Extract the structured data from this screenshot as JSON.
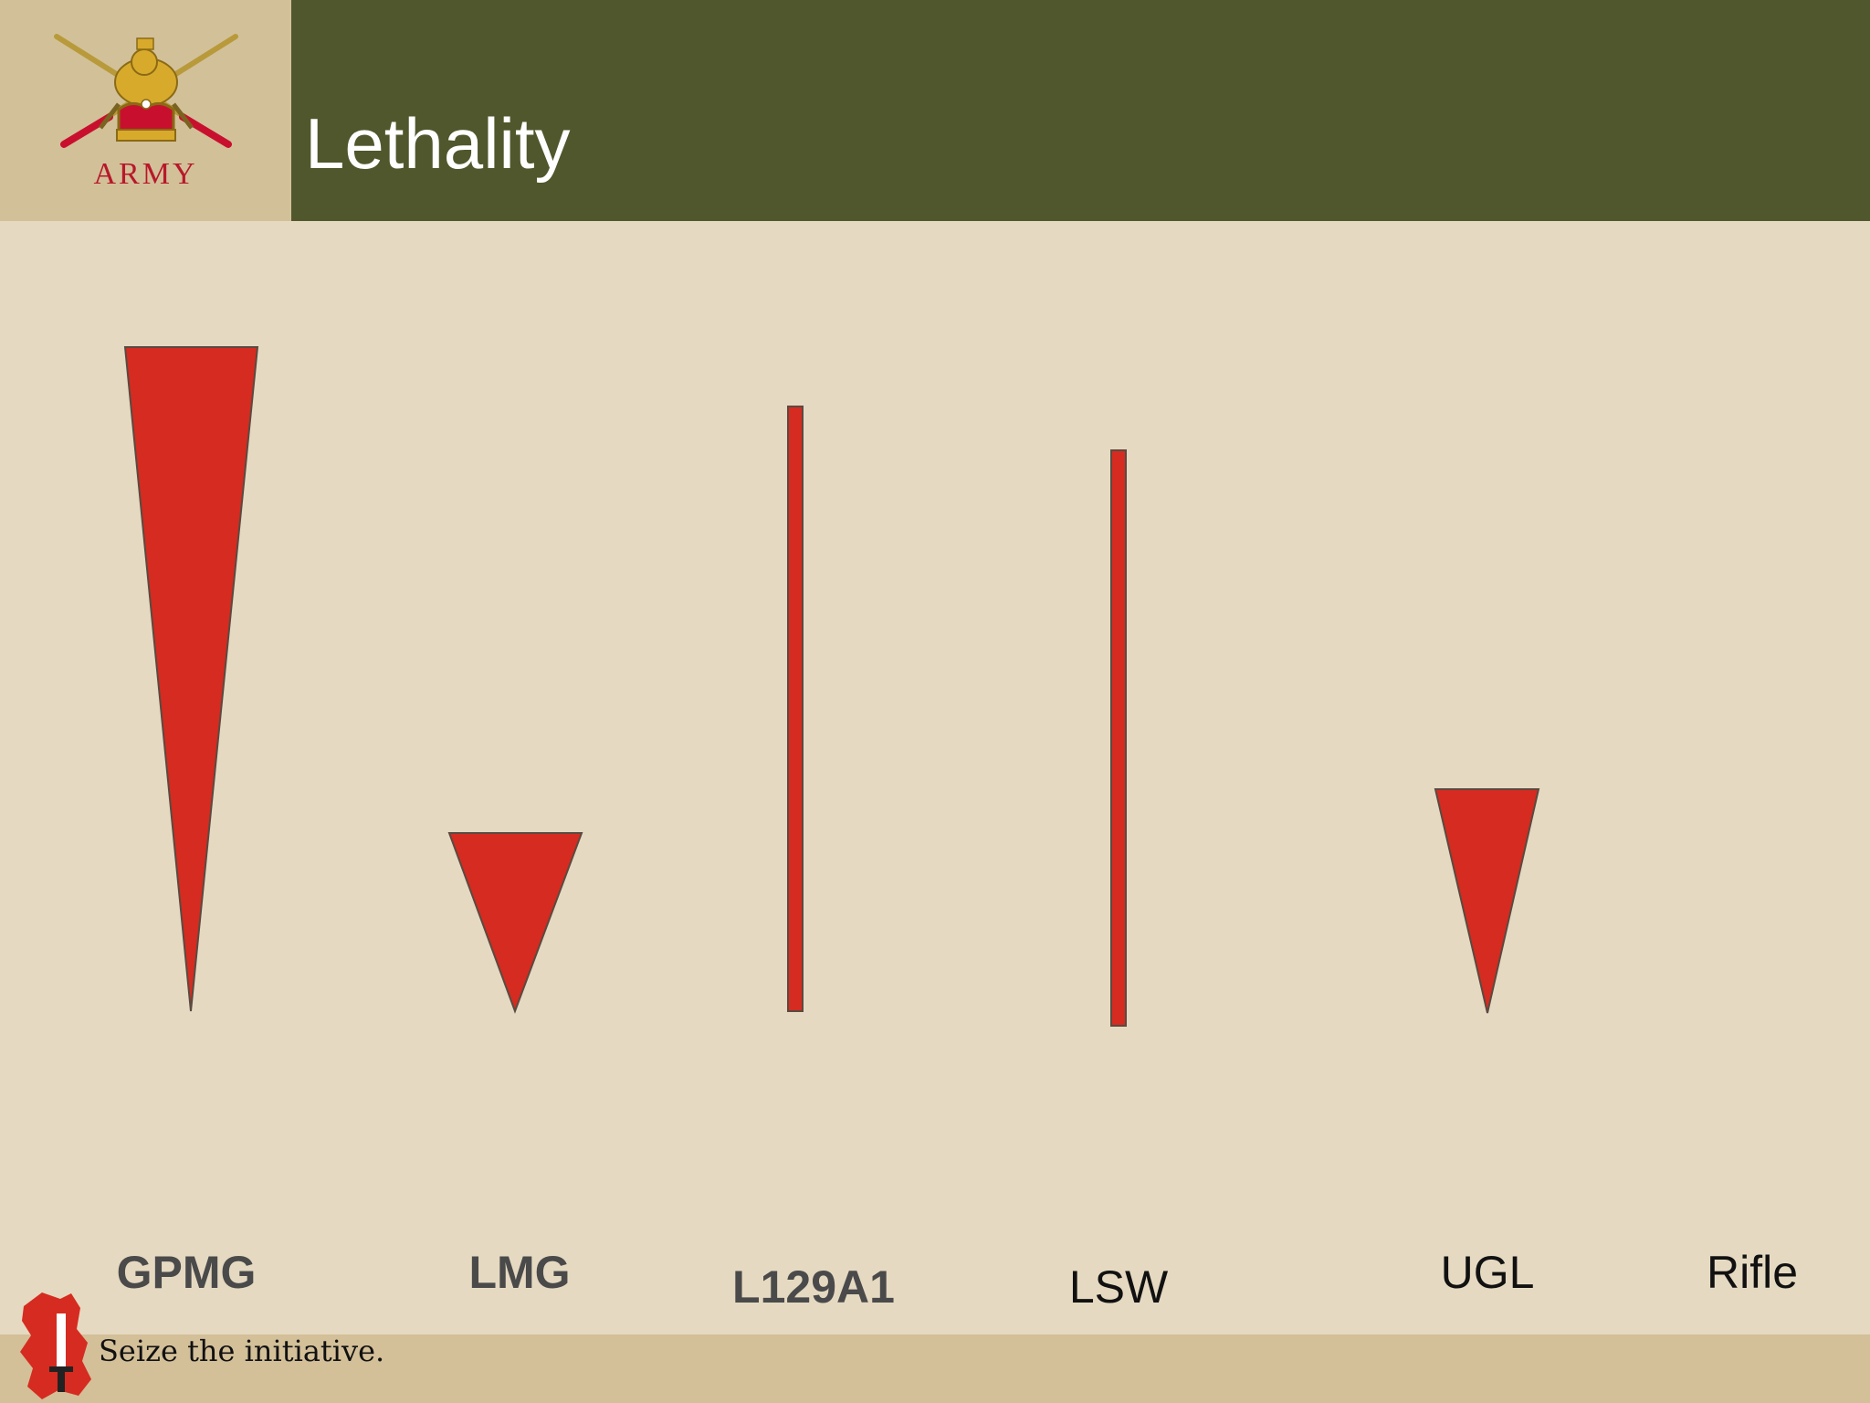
{
  "header": {
    "logo_text": "ARMY",
    "title": "Lethality"
  },
  "weapons": [
    {
      "label": "GPMG",
      "shape": "triangle"
    },
    {
      "label": "LMG",
      "shape": "triangle"
    },
    {
      "label": "L129A1",
      "shape": "bar"
    },
    {
      "label": "LSW",
      "shape": "bar"
    },
    {
      "label": "UGL",
      "shape": "triangle"
    },
    {
      "label": "Rifle",
      "shape": "none"
    }
  ],
  "footer": {
    "tagline": "Seize the initiative."
  },
  "colors": {
    "header_band": "#50572c",
    "logo_panel": "#d2c099",
    "background": "#e5d9c1",
    "footer_band": "#d3bf98",
    "marker_red": "#d62b20"
  }
}
